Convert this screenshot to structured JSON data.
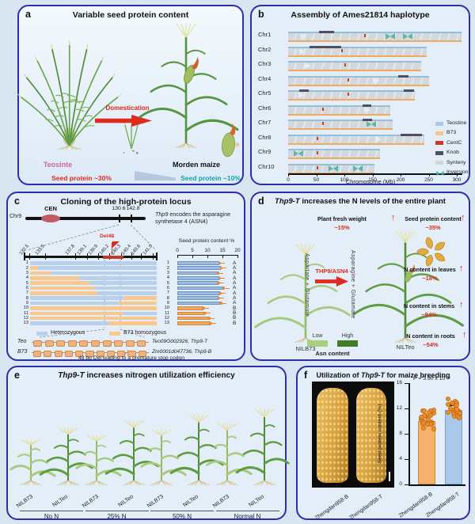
{
  "figure": {
    "background": "#d9e6f2",
    "panel_border": "#2b2fa8"
  },
  "panels": {
    "a": {
      "label": "a",
      "title": "Variable seed protein content",
      "teosinte_label": "Teosinte",
      "maize_label": "Morden maize",
      "arrow_label": "Domestication",
      "protein_left": "Seed protein ~30%",
      "protein_right": "Seed protein ~10%"
    },
    "b": {
      "label": "b",
      "title": "Assembly of Ames21814 haplotype",
      "axis_label": "Chromosome (Mb)",
      "axis_ticks": [
        "0",
        "50",
        "100",
        "150",
        "200",
        "250",
        "300"
      ],
      "legend": [
        {
          "label": "Teostine",
          "color": "#a9cbe4",
          "kind": "box"
        },
        {
          "label": "B73",
          "color": "#f6c48e",
          "kind": "box"
        },
        {
          "label": "CentC",
          "color": "#cf3a28",
          "kind": "box"
        },
        {
          "label": "Knob",
          "color": "#4d4f63",
          "kind": "box"
        },
        {
          "label": "Synteny",
          "color": "#d3d6da",
          "kind": "box"
        },
        {
          "label": "Inversion",
          "color": "#48b098",
          "kind": "bowtie"
        }
      ],
      "chromosomes": [
        {
          "name": "Chr1",
          "len": 308,
          "cent": 135,
          "knobs": [
            [
              55,
              82
            ]
          ],
          "inversions": [
            182,
            212
          ],
          "gaps": [
            22
          ]
        },
        {
          "name": "Chr2",
          "len": 246,
          "cent": 95,
          "knobs": [
            [
              38,
              95
            ]
          ],
          "inversions": [],
          "gaps": [
            20
          ]
        },
        {
          "name": "Chr3",
          "len": 236,
          "cent": 100,
          "knobs": [],
          "inversions": [],
          "gaps": [
            30
          ]
        },
        {
          "name": "Chr4",
          "len": 250,
          "cent": 105,
          "knobs": [
            [
              196,
              214
            ]
          ],
          "inversions": [],
          "gaps": [
            150
          ]
        },
        {
          "name": "Chr5",
          "len": 226,
          "cent": 105,
          "knobs": [
            [
              20,
              36
            ],
            [
              205,
              224
            ]
          ],
          "inversions": [],
          "gaps": [
            18
          ]
        },
        {
          "name": "Chr6",
          "len": 181,
          "cent": 60,
          "knobs": [
            [
              132,
              148
            ]
          ],
          "inversions": [],
          "gaps": [
            135
          ]
        },
        {
          "name": "Chr7",
          "len": 186,
          "cent": 60,
          "knobs": [
            [
              132,
              150
            ]
          ],
          "inversions": [
            148
          ],
          "gaps": []
        },
        {
          "name": "Chr8",
          "len": 242,
          "cent": 50,
          "knobs": [
            [
              200,
              238
            ]
          ],
          "inversions": [],
          "gaps": [
            155
          ]
        },
        {
          "name": "Chr9",
          "len": 164,
          "cent": 50,
          "knobs": [],
          "inversions": [
            18
          ],
          "gaps": []
        },
        {
          "name": "Chr10",
          "len": 154,
          "cent": 50,
          "knobs": [],
          "inversions": [
            80,
            124
          ],
          "gaps": []
        }
      ]
    },
    "c": {
      "label": "c",
      "title": "Cloning of the high-protein locus",
      "chr_name": "Chr9",
      "cen_label": "CEN",
      "marks": [
        "130.6",
        "142.8"
      ],
      "note_italic": "Thp9",
      "note_rest": " encodes the asparagine synthetase 4 (ASN4)",
      "del_label": "Del48",
      "map_ticks": [
        {
          "label": "132.5",
          "x": 27
        },
        {
          "label": "133.5",
          "x": 47
        },
        {
          "label": "137.8",
          "x": 85
        },
        {
          "label": "139.1",
          "x": 100
        },
        {
          "label": "139.9",
          "x": 114
        },
        {
          "label": "140.2",
          "x": 128
        },
        {
          "label": "140.3",
          "x": 143
        },
        {
          "label": "140.4",
          "x": 156
        },
        {
          "label": "140.6",
          "x": 168
        },
        {
          "label": "141.0",
          "x": 183
        }
      ],
      "bar_axis_title": "Seed protein content %",
      "bar_ticks": [
        "0",
        "5",
        "10",
        "15",
        "20"
      ],
      "legend_het": "Heterozygous",
      "legend_b73": "B73 homozygous",
      "rows": [
        {
          "n": "1",
          "group": "A",
          "value": 14.0,
          "segs": [
            [
              "het",
              0,
              1
            ]
          ]
        },
        {
          "n": "2",
          "group": "A",
          "value": 14.5,
          "segs": [
            [
              "b73",
              0,
              0.06
            ],
            [
              "het",
              0.06,
              1
            ]
          ]
        },
        {
          "n": "3",
          "group": "A",
          "value": 13.5,
          "segs": [
            [
              "b73",
              0,
              0.16
            ],
            [
              "het",
              0.16,
              1
            ]
          ]
        },
        {
          "n": "4",
          "group": "A",
          "value": 14.0,
          "segs": [
            [
              "b73",
              0,
              0.39
            ],
            [
              "het",
              0.39,
              1
            ]
          ]
        },
        {
          "n": "5",
          "group": "A",
          "value": 13.6,
          "segs": [
            [
              "b73",
              0,
              0.47
            ],
            [
              "het",
              0.47,
              1
            ]
          ]
        },
        {
          "n": "6",
          "group": "A",
          "value": 15.4,
          "segs": [
            [
              "b73",
              0,
              0.51
            ],
            [
              "het",
              0.51,
              1
            ]
          ]
        },
        {
          "n": "7",
          "group": "A",
          "value": 14.2,
          "segs": [
            [
              "b73",
              0,
              0.53
            ],
            [
              "het",
              0.53,
              1
            ]
          ]
        },
        {
          "n": "8",
          "group": "A",
          "value": 13.8,
          "segs": [
            [
              "het",
              0,
              0.74
            ],
            [
              "b73",
              0.74,
              1
            ]
          ]
        },
        {
          "n": "9",
          "group": "A",
          "value": 14.4,
          "segs": [
            [
              "het",
              0,
              0.7
            ],
            [
              "b73",
              0.7,
              1
            ]
          ]
        },
        {
          "n": "10",
          "group": "B",
          "value": 8.6,
          "segs": [
            [
              "b73",
              0,
              1
            ]
          ]
        },
        {
          "n": "11",
          "group": "B",
          "value": 9.2,
          "segs": [
            [
              "b73",
              0,
              0.73
            ],
            [
              "het",
              0.73,
              1
            ]
          ]
        },
        {
          "n": "12",
          "group": "B",
          "value": 10.6,
          "segs": [
            [
              "b73",
              0,
              1
            ]
          ]
        },
        {
          "n": "13",
          "group": "B",
          "value": 11.0,
          "segs": [
            [
              "het",
              0,
              0.62
            ],
            [
              "b73",
              0.62,
              1
            ]
          ]
        }
      ],
      "genes": [
        {
          "name": "Teo",
          "gene": "Teo09G002926, Thp9-T",
          "exons": 10
        },
        {
          "name": "B73",
          "gene": "Zm0001d047736, Thp9-B",
          "exons": 11
        }
      ],
      "caption": "48 bp Del leading to a premature stop codon"
    },
    "d": {
      "label": "d",
      "title_italic": "Thp9-T",
      "title_rest": " increases the N levels of the entire plant",
      "stats": [
        {
          "label": "Plant fresh weight",
          "value": "~15%"
        },
        {
          "label": "Seed protein content",
          "value": "~35%"
        },
        {
          "label": "N content in leaves",
          "value": "~18%"
        },
        {
          "label": "N content in stems",
          "value": "~94%"
        },
        {
          "label": "N content in roots",
          "value": "~54%"
        }
      ],
      "pathway_left": "Aspartate + Glutamine",
      "enzyme": "THP9/ASN4",
      "pathway_right": "Asparagine + Glutamate",
      "legend_low": "Low",
      "legend_high": "High",
      "legend_caption": "Asn content",
      "plant_left": "NILB73",
      "plant_right": "NILTeo"
    },
    "e": {
      "label": "e",
      "title_italic": "Thp9-T",
      "title_rest": " increases nitrogen utilization efficiency",
      "pair": [
        "NILB73",
        "NILTeo"
      ],
      "groups": [
        "No N",
        "25% N",
        "50% N",
        "Normal N"
      ]
    },
    "f": {
      "label": "f",
      "title_pre": "Utilization of ",
      "title_italic": "Thp9-T",
      "title_post": " for maize breeding",
      "photo_labels": [
        "Zhengdan958-B",
        "Zhengdan958-T"
      ],
      "p_italic": "P",
      "p_rest": " = 3.90 x 10⁻⁸",
      "ylabel": "Seed protein content (%)",
      "yticks": [
        "0",
        "4",
        "8",
        "12",
        "16"
      ],
      "bars": [
        {
          "label": "Zhengdan958-B",
          "value": 10.0,
          "color": "#f6b26b",
          "border": "#c98a48"
        },
        {
          "label": "Zhengdan958-T",
          "value": 11.7,
          "color": "#aac8ea",
          "border": "#7aa0cc"
        }
      ]
    }
  },
  "chart_data": [
    {
      "panel": "c",
      "type": "bar",
      "orientation": "horizontal",
      "title": "Seed protein content %",
      "categories": [
        "1",
        "2",
        "3",
        "4",
        "5",
        "6",
        "7",
        "8",
        "9",
        "10",
        "11",
        "12",
        "13"
      ],
      "values": [
        14.0,
        14.5,
        13.5,
        14.0,
        13.6,
        15.4,
        14.2,
        13.8,
        14.4,
        8.6,
        9.2,
        10.6,
        11.0
      ],
      "groups": [
        "A",
        "A",
        "A",
        "A",
        "A",
        "A",
        "A",
        "A",
        "A",
        "B",
        "B",
        "B",
        "B"
      ],
      "xlim": [
        0,
        20
      ]
    },
    {
      "panel": "f",
      "type": "bar",
      "categories": [
        "Zhengdan958-B",
        "Zhengdan958-T"
      ],
      "values": [
        10.0,
        11.7
      ],
      "ylabel": "Seed protein content (%)",
      "ylim": [
        0,
        16
      ],
      "annotation": "P = 3.90 x 10⁻⁸"
    }
  ]
}
